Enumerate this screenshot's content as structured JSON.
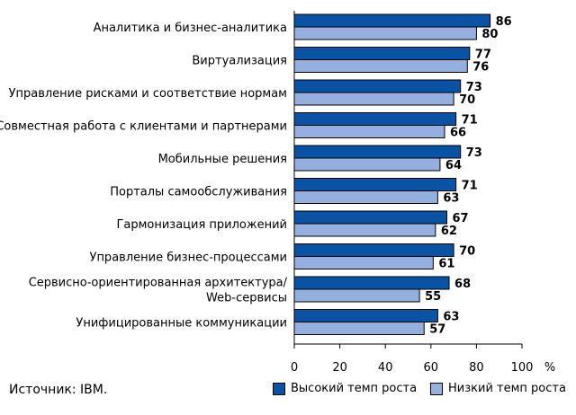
{
  "chart_data": {
    "type": "bar",
    "orientation": "horizontal",
    "categories": [
      [
        "Аналитика и бизнес-аналитика"
      ],
      [
        "Виртуализация"
      ],
      [
        "Управление рисками и соответствие нормам"
      ],
      [
        "Совместная работа с клиентами и партнерами"
      ],
      [
        "Мобильные решения"
      ],
      [
        "Порталы самообслуживания"
      ],
      [
        "Гармонизация приложений"
      ],
      [
        "Управление бизнес-процессами"
      ],
      [
        "Сервисно-ориентированная архитектура/",
        "Web-сервисы"
      ],
      [
        "Унифицированные коммуникации"
      ]
    ],
    "series": [
      {
        "name": "Высокий темп роста",
        "color": "#0a52a3",
        "values": [
          86,
          77,
          73,
          71,
          73,
          71,
          67,
          70,
          68,
          63
        ]
      },
      {
        "name": "Низкий темп роста",
        "color": "#95b0de",
        "values": [
          80,
          76,
          70,
          66,
          64,
          63,
          62,
          61,
          55,
          57
        ]
      }
    ],
    "xlim": [
      0,
      100
    ],
    "xticks": [
      "0",
      "20",
      "40",
      "60",
      "80",
      "100"
    ],
    "unit": "%",
    "grid": false,
    "legend_position": "bottom-right"
  },
  "source": "Источник: IBM."
}
